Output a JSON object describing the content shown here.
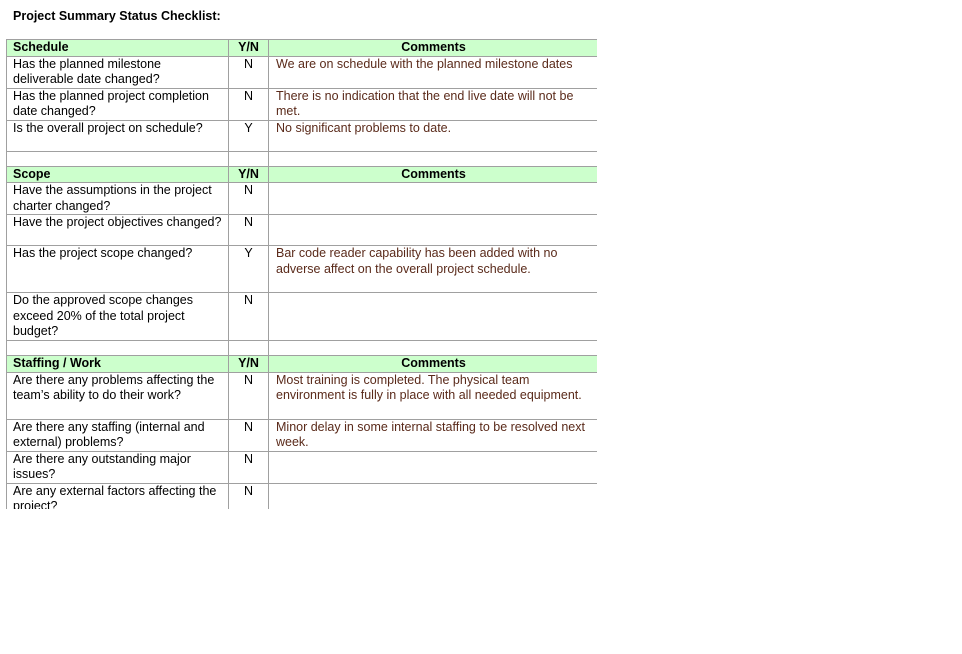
{
  "title": "Project Summary Status Checklist:",
  "accent_header_bg": "#ccffcc",
  "comment_color": "#5a2a1a",
  "sections": [
    {
      "header": {
        "label": "Schedule",
        "yn": "Y/N",
        "comments": "Comments"
      },
      "rows": [
        {
          "q": "Has the planned milestone deliverable date changed?",
          "yn": "N",
          "c": "We are on schedule with the planned milestone dates"
        },
        {
          "q": "Has the planned project completion date changed?",
          "yn": "N",
          "c": "There is no indication that the end live date will not be met."
        },
        {
          "q": "Is the overall project on schedule?",
          "yn": "Y",
          "c": "No significant problems to date."
        }
      ]
    },
    {
      "header": {
        "label": "Scope",
        "yn": "Y/N",
        "comments": "Comments"
      },
      "rows": [
        {
          "q": "Have the assumptions in the project charter changed?",
          "yn": "N",
          "c": ""
        },
        {
          "q": "Have the project objectives changed?",
          "yn": "N",
          "c": ""
        },
        {
          "q": "Has the project scope changed?",
          "yn": "Y",
          "c": "Bar code reader capability has been added with no adverse affect on the overall project schedule."
        },
        {
          "q": "Do the approved scope changes exceed 20% of the total project budget?",
          "yn": "N",
          "c": ""
        }
      ]
    },
    {
      "header": {
        "label": "Staffing / Work",
        "yn": "Y/N",
        "comments": "Comments"
      },
      "rows": [
        {
          "q": "Are there any problems affecting the team’s ability to do their work?",
          "yn": "N",
          "c": "Most training is completed. The physical team environment is fully in place with all needed equipment."
        },
        {
          "q": "Are there any staffing (internal and external) problems?",
          "yn": "N",
          "c": "Minor delay in some internal staffing to be resolved next week."
        },
        {
          "q": "Are there any outstanding major issues?",
          "yn": "N",
          "c": ""
        },
        {
          "q": "Are any external factors affecting the project?",
          "yn": "N",
          "c": ""
        }
      ]
    }
  ]
}
